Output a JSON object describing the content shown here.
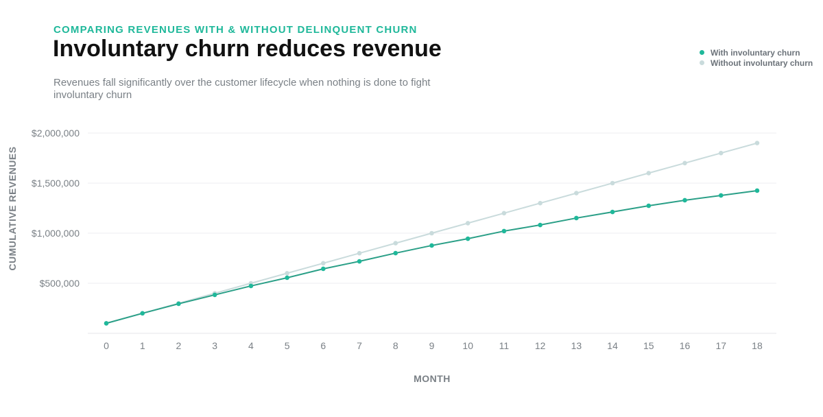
{
  "header": {
    "kicker": "COMPARING REVENUES WITH & WITHOUT DELINQUENT CHURN",
    "title": "Involuntary churn reduces revenue",
    "subtitle": "Revenues fall significantly over the customer lifecycle when nothing is done to fight involuntary churn"
  },
  "chart_data": {
    "type": "line",
    "title": "Involuntary churn reduces revenue",
    "xlabel": "MONTH",
    "ylabel": "CUMULATIVE REVENUES",
    "x": [
      0,
      1,
      2,
      3,
      4,
      5,
      6,
      7,
      8,
      9,
      10,
      11,
      12,
      13,
      14,
      15,
      16,
      17,
      18
    ],
    "ylim": [
      0,
      2000000
    ],
    "yticks": [
      500000,
      1000000,
      1500000,
      2000000
    ],
    "ytick_labels": [
      "$500,000",
      "$1,000,000",
      "$1,500,000",
      "$2,000,000"
    ],
    "grid": true,
    "legend_position": "top-right",
    "series": [
      {
        "name": "With involuntary churn",
        "color": "#1fb89a",
        "values": [
          100000,
          200000,
          295000,
          384000,
          473000,
          555000,
          644000,
          719000,
          801000,
          877000,
          945000,
          1021000,
          1082000,
          1151000,
          1212000,
          1274000,
          1329000,
          1377000,
          1425000
        ]
      },
      {
        "name": "Without involuntary churn",
        "color": "#c9dbdc",
        "values": [
          100000,
          200000,
          300000,
          400000,
          500000,
          600000,
          700000,
          800000,
          900000,
          1000000,
          1100000,
          1200000,
          1300000,
          1400000,
          1500000,
          1600000,
          1700000,
          1800000,
          1900000
        ]
      }
    ]
  }
}
